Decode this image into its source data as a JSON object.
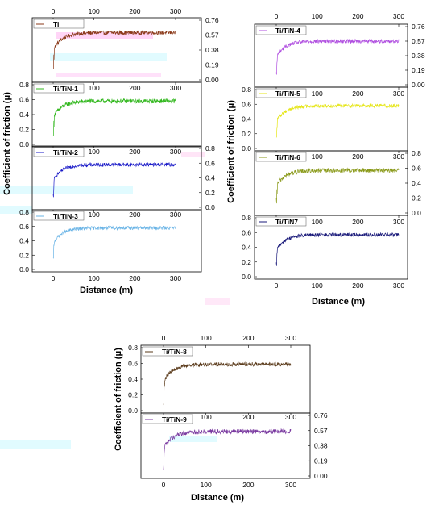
{
  "figure": {
    "ylabel": "Coefficient of friction (μ)",
    "xlabel": "Distance (m)"
  },
  "chart_data": [
    {
      "type": "line",
      "series": [
        {
          "name": "Ti",
          "color": "#8B3A1A",
          "plateau": 0.6,
          "noise": 0.025
        }
      ],
      "xlim": [
        0,
        300
      ],
      "xticks": [
        0,
        100,
        200,
        300
      ],
      "ylim": [
        0,
        0.76
      ],
      "yticks": [
        "0.00",
        "0.19",
        "0.38",
        "0.57",
        "0.76"
      ],
      "xticks_shown": true,
      "yaxis_side": "right",
      "legend": "top-left"
    },
    {
      "type": "line",
      "series": [
        {
          "name": "Ti/TiN-1",
          "color": "#33B81F",
          "plateau": 0.58,
          "noise": 0.03
        }
      ],
      "xlim": [
        0,
        300
      ],
      "xticks": [
        0,
        100,
        200,
        300
      ],
      "ylim": [
        0,
        0.8
      ],
      "yticks": [
        "0.0",
        "0.2",
        "0.4",
        "0.6",
        "0.8"
      ],
      "xticks_shown": true,
      "yaxis_side": "left",
      "legend": "top-left"
    },
    {
      "type": "line",
      "series": [
        {
          "name": "Ti/TiN-2",
          "color": "#1A1AC8",
          "plateau": 0.58,
          "noise": 0.025
        }
      ],
      "xlim": [
        0,
        300
      ],
      "xticks": [
        0,
        100,
        200,
        300
      ],
      "ylim": [
        0,
        0.8
      ],
      "yticks": [
        "0.0",
        "0.2",
        "0.4",
        "0.6",
        "0.8"
      ],
      "xticks_shown": true,
      "yaxis_side": "right",
      "legend": "top-left"
    },
    {
      "type": "line",
      "series": [
        {
          "name": "Ti/TiN-3",
          "color": "#6AB4E6",
          "plateau": 0.58,
          "noise": 0.025
        }
      ],
      "xlim": [
        0,
        300
      ],
      "xticks": [
        0,
        100,
        200,
        300
      ],
      "ylim": [
        0,
        0.8
      ],
      "yticks": [
        "0.0",
        "0.2",
        "0.4",
        "0.6",
        "0.8"
      ],
      "xticks_shown": true,
      "yaxis_side": "left",
      "legend": "top-left"
    },
    {
      "type": "line",
      "series": [
        {
          "name": "Ti/TiN-4",
          "color": "#B04FE0",
          "plateau": 0.57,
          "noise": 0.025
        }
      ],
      "xlim": [
        0,
        300
      ],
      "xticks": [
        0,
        100,
        200,
        300
      ],
      "ylim": [
        0,
        0.76
      ],
      "yticks": [
        "0.00",
        "0.19",
        "0.38",
        "0.57",
        "0.76"
      ],
      "xticks_shown": true,
      "yaxis_side": "right",
      "legend": "top-left"
    },
    {
      "type": "line",
      "series": [
        {
          "name": "Ti/TiN-5",
          "color": "#E6E61A",
          "plateau": 0.58,
          "noise": 0.025
        }
      ],
      "xlim": [
        0,
        300
      ],
      "xticks": [
        0,
        100,
        200,
        300
      ],
      "ylim": [
        0,
        0.8
      ],
      "yticks": [
        "0.0",
        "0.2",
        "0.4",
        "0.6",
        "0.8"
      ],
      "xticks_shown": true,
      "yaxis_side": "left",
      "legend": "top-left"
    },
    {
      "type": "line",
      "series": [
        {
          "name": "Ti/TiN-6",
          "color": "#8A9A1A",
          "plateau": 0.57,
          "noise": 0.03
        }
      ],
      "xlim": [
        0,
        300
      ],
      "xticks": [
        0,
        100,
        200,
        300
      ],
      "ylim": [
        0,
        0.8
      ],
      "yticks": [
        "0.0",
        "0.2",
        "0.4",
        "0.6",
        "0.8"
      ],
      "xticks_shown": true,
      "yaxis_side": "right",
      "legend": "top-left"
    },
    {
      "type": "line",
      "series": [
        {
          "name": "Ti/TiN7",
          "color": "#1A1A7A",
          "plateau": 0.57,
          "noise": 0.025
        }
      ],
      "xlim": [
        0,
        300
      ],
      "xticks": [
        0,
        100,
        200,
        300
      ],
      "ylim": [
        0,
        0.8
      ],
      "yticks": [
        "0.0",
        "0.2",
        "0.4",
        "0.6",
        "0.8"
      ],
      "xticks_shown": true,
      "yaxis_side": "left",
      "legend": "top-left"
    },
    {
      "type": "line",
      "series": [
        {
          "name": "Ti/TiN-8",
          "color": "#5A3A1A",
          "plateau": 0.59,
          "noise": 0.025
        }
      ],
      "xlim": [
        0,
        300
      ],
      "xticks": [
        0,
        100,
        200,
        300
      ],
      "ylim": [
        0,
        0.8
      ],
      "yticks": [
        "0.0",
        "0.2",
        "0.4",
        "0.6",
        "0.8"
      ],
      "xticks_shown": true,
      "yaxis_side": "left",
      "legend": "top-left"
    },
    {
      "type": "line",
      "series": [
        {
          "name": "Ti/TiN-9",
          "color": "#7A3AA0",
          "plateau": 0.56,
          "noise": 0.03
        }
      ],
      "xlim": [
        0,
        300
      ],
      "xticks": [
        0,
        100,
        200,
        300
      ],
      "ylim": [
        0,
        0.76
      ],
      "yticks": [
        "0.00",
        "0.19",
        "0.38",
        "0.57",
        "0.76"
      ],
      "xticks_shown": true,
      "yaxis_side": "right",
      "legend": "top-left"
    }
  ]
}
